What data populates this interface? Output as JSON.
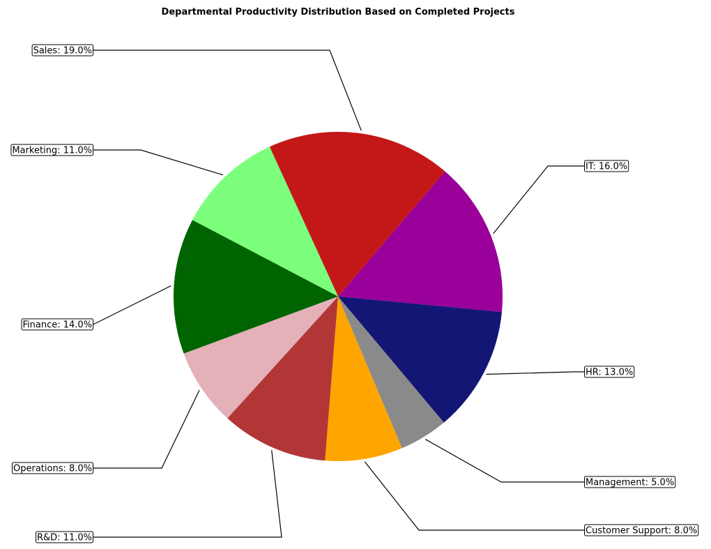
{
  "chart_data": {
    "type": "pie",
    "title": "Departmental Productivity Distribution Based on Completed Projects",
    "slices": [
      {
        "name": "IT",
        "value": 16.0,
        "color": "#9a009a",
        "label": "IT: 16.0%"
      },
      {
        "name": "Sales",
        "value": 19.0,
        "color": "#c41818",
        "label": "Sales: 19.0%"
      },
      {
        "name": "Marketing",
        "value": 11.0,
        "color": "#7cff7c",
        "label": "Marketing: 11.0%"
      },
      {
        "name": "Finance",
        "value": 14.0,
        "color": "#006400",
        "label": "Finance: 14.0%"
      },
      {
        "name": "Operations",
        "value": 8.0,
        "color": "#e4b1b9",
        "label": "Operations: 8.0%"
      },
      {
        "name": "R&D",
        "value": 11.0,
        "color": "#b23636",
        "label": "R&D: 11.0%"
      },
      {
        "name": "Customer Support",
        "value": 8.0,
        "color": "#ffa500",
        "label": "Customer Support: 8.0%"
      },
      {
        "name": "Management",
        "value": 5.0,
        "color": "#8a8a8a",
        "label": "Management: 5.0%"
      },
      {
        "name": "HR",
        "value": 13.0,
        "color": "#141675",
        "label": "HR: 13.0%"
      }
    ],
    "start_angle_degrees": -5.4,
    "direction": "counterclockwise",
    "legend": "none"
  }
}
